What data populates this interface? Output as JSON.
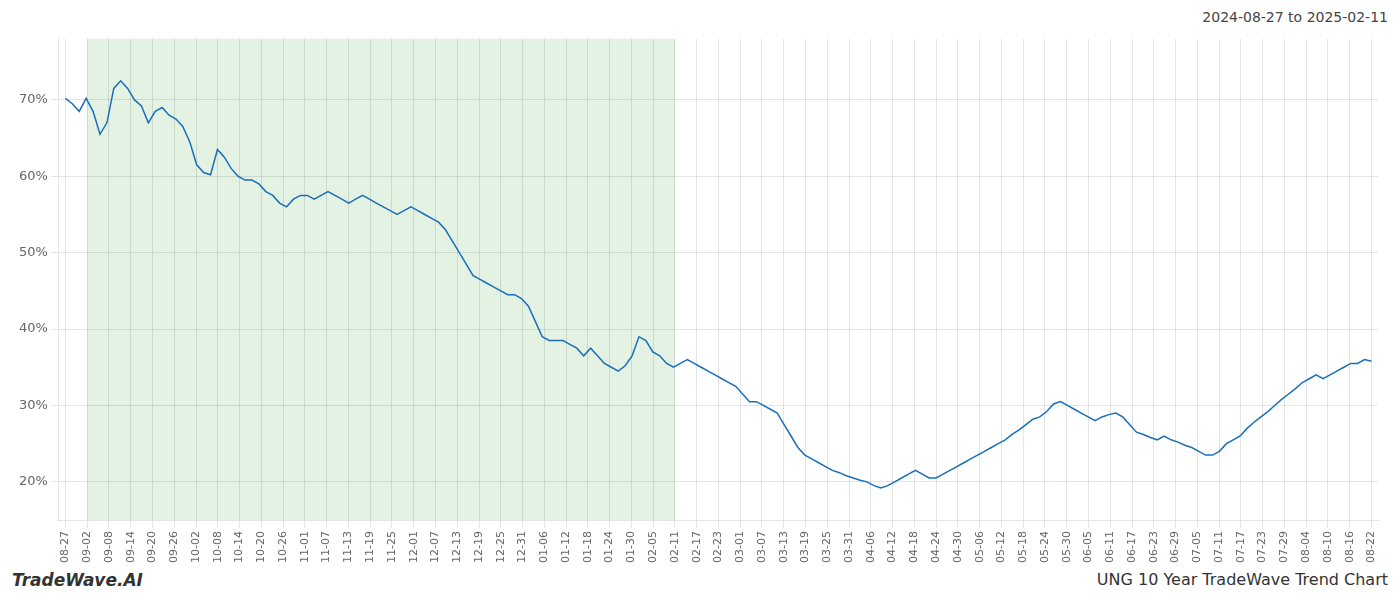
{
  "chart_data": {
    "type": "line",
    "subtitle": "2024-08-27 to 2025-02-11",
    "title": "UNG 10 Year TradeWave Trend Chart",
    "annotations": [
      "TradeWave.AI"
    ],
    "color": "#1a6fba",
    "grid": true,
    "span": {
      "from": 1,
      "to": 28,
      "color": "#c8e6c8"
    },
    "xlim": [
      -0.3,
      60.3
    ],
    "xticks": [
      {
        "value": 0,
        "label": "08-27"
      },
      {
        "value": 1,
        "label": "09-02"
      },
      {
        "value": 2,
        "label": "09-08"
      },
      {
        "value": 3,
        "label": "09-14"
      },
      {
        "value": 4,
        "label": "09-20"
      },
      {
        "value": 5,
        "label": "09-26"
      },
      {
        "value": 6,
        "label": "10-02"
      },
      {
        "value": 7,
        "label": "10-08"
      },
      {
        "value": 8,
        "label": "10-14"
      },
      {
        "value": 9,
        "label": "10-20"
      },
      {
        "value": 10,
        "label": "10-26"
      },
      {
        "value": 11,
        "label": "11-01"
      },
      {
        "value": 12,
        "label": "11-07"
      },
      {
        "value": 13,
        "label": "11-13"
      },
      {
        "value": 14,
        "label": "11-19"
      },
      {
        "value": 15,
        "label": "11-25"
      },
      {
        "value": 16,
        "label": "12-01"
      },
      {
        "value": 17,
        "label": "12-07"
      },
      {
        "value": 18,
        "label": "12-13"
      },
      {
        "value": 19,
        "label": "12-19"
      },
      {
        "value": 20,
        "label": "12-25"
      },
      {
        "value": 21,
        "label": "12-31"
      },
      {
        "value": 22,
        "label": "01-06"
      },
      {
        "value": 23,
        "label": "01-12"
      },
      {
        "value": 24,
        "label": "01-18"
      },
      {
        "value": 25,
        "label": "01-24"
      },
      {
        "value": 26,
        "label": "01-30"
      },
      {
        "value": 27,
        "label": "02-05"
      },
      {
        "value": 28,
        "label": "02-11"
      },
      {
        "value": 29,
        "label": "02-17"
      },
      {
        "value": 30,
        "label": "02-23"
      },
      {
        "value": 31,
        "label": "03-01"
      },
      {
        "value": 32,
        "label": "03-07"
      },
      {
        "value": 33,
        "label": "03-13"
      },
      {
        "value": 34,
        "label": "03-19"
      },
      {
        "value": 35,
        "label": "03-25"
      },
      {
        "value": 36,
        "label": "03-31"
      },
      {
        "value": 37,
        "label": "04-06"
      },
      {
        "value": 38,
        "label": "04-12"
      },
      {
        "value": 39,
        "label": "04-18"
      },
      {
        "value": 40,
        "label": "04-24"
      },
      {
        "value": 41,
        "label": "04-30"
      },
      {
        "value": 42,
        "label": "05-06"
      },
      {
        "value": 43,
        "label": "05-12"
      },
      {
        "value": 44,
        "label": "05-18"
      },
      {
        "value": 45,
        "label": "05-24"
      },
      {
        "value": 46,
        "label": "05-30"
      },
      {
        "value": 47,
        "label": "06-05"
      },
      {
        "value": 48,
        "label": "06-11"
      },
      {
        "value": 49,
        "label": "06-17"
      },
      {
        "value": 50,
        "label": "06-23"
      },
      {
        "value": 51,
        "label": "06-29"
      },
      {
        "value": 52,
        "label": "07-05"
      },
      {
        "value": 53,
        "label": "07-11"
      },
      {
        "value": 54,
        "label": "07-17"
      },
      {
        "value": 55,
        "label": "07-23"
      },
      {
        "value": 56,
        "label": "07-29"
      },
      {
        "value": 57,
        "label": "08-04"
      },
      {
        "value": 58,
        "label": "08-10"
      },
      {
        "value": 59,
        "label": "08-16"
      },
      {
        "value": 60,
        "label": "08-22"
      }
    ],
    "ylim": [
      15,
      78
    ],
    "yticks": [
      {
        "value": 20,
        "label": "20%"
      },
      {
        "value": 30,
        "label": "30%"
      },
      {
        "value": 40,
        "label": "40%"
      },
      {
        "value": 50,
        "label": "50%"
      },
      {
        "value": 60,
        "label": "60%"
      },
      {
        "value": 70,
        "label": "70%"
      }
    ],
    "values": [
      70.2,
      69.5,
      68.5,
      70.2,
      68.5,
      65.5,
      67.0,
      71.5,
      72.5,
      71.5,
      70.0,
      69.2,
      67.0,
      68.5,
      69.0,
      68.0,
      67.5,
      66.5,
      64.5,
      61.5,
      60.5,
      60.2,
      63.5,
      62.5,
      61.0,
      60.0,
      59.5,
      59.5,
      59.0,
      58.0,
      57.5,
      56.5,
      56.0,
      57.0,
      57.5,
      57.5,
      57.0,
      57.5,
      58.0,
      57.5,
      57.0,
      56.5,
      57.0,
      57.5,
      57.0,
      56.5,
      56.0,
      55.5,
      55.0,
      55.5,
      56.0,
      55.5,
      55.0,
      54.5,
      54.0,
      53.0,
      51.5,
      50.0,
      48.5,
      47.0,
      46.5,
      46.0,
      45.5,
      45.0,
      44.5,
      44.5,
      44.0,
      43.0,
      41.0,
      39.0,
      38.5,
      38.5,
      38.5,
      38.0,
      37.5,
      36.5,
      37.5,
      36.5,
      35.5,
      35.0,
      34.5,
      35.2,
      36.5,
      39.0,
      38.5,
      37.0,
      36.5,
      35.5,
      35.0,
      35.5,
      36.0,
      35.5,
      35.0,
      34.5,
      34.0,
      33.5,
      33.0,
      32.5,
      31.5,
      30.5,
      30.5,
      30.0,
      29.5,
      29.0,
      27.5,
      26.0,
      24.5,
      23.5,
      23.0,
      22.5,
      22.0,
      21.5,
      21.2,
      20.8,
      20.5,
      20.2,
      20.0,
      19.5,
      19.2,
      19.5,
      20.0,
      20.5,
      21.0,
      21.5,
      21.0,
      20.5,
      20.5,
      21.0,
      21.5,
      22.0,
      22.5,
      23.0,
      23.5,
      24.0,
      24.5,
      25.0,
      25.5,
      26.2,
      26.8,
      27.5,
      28.2,
      28.5,
      29.2,
      30.2,
      30.5,
      30.0,
      29.5,
      29.0,
      28.5,
      28.0,
      28.5,
      28.8,
      29.0,
      28.5,
      27.5,
      26.5,
      26.2,
      25.8,
      25.5,
      26.0,
      25.5,
      25.2,
      24.8,
      24.5,
      24.0,
      23.5,
      23.5,
      24.0,
      25.0,
      25.5,
      26.0,
      27.0,
      27.8,
      28.5,
      29.2,
      30.0,
      30.8,
      31.5,
      32.2,
      33.0,
      33.5,
      34.0,
      33.5,
      34.0,
      34.5,
      35.0,
      35.5,
      35.5,
      36.0,
      35.8
    ]
  }
}
